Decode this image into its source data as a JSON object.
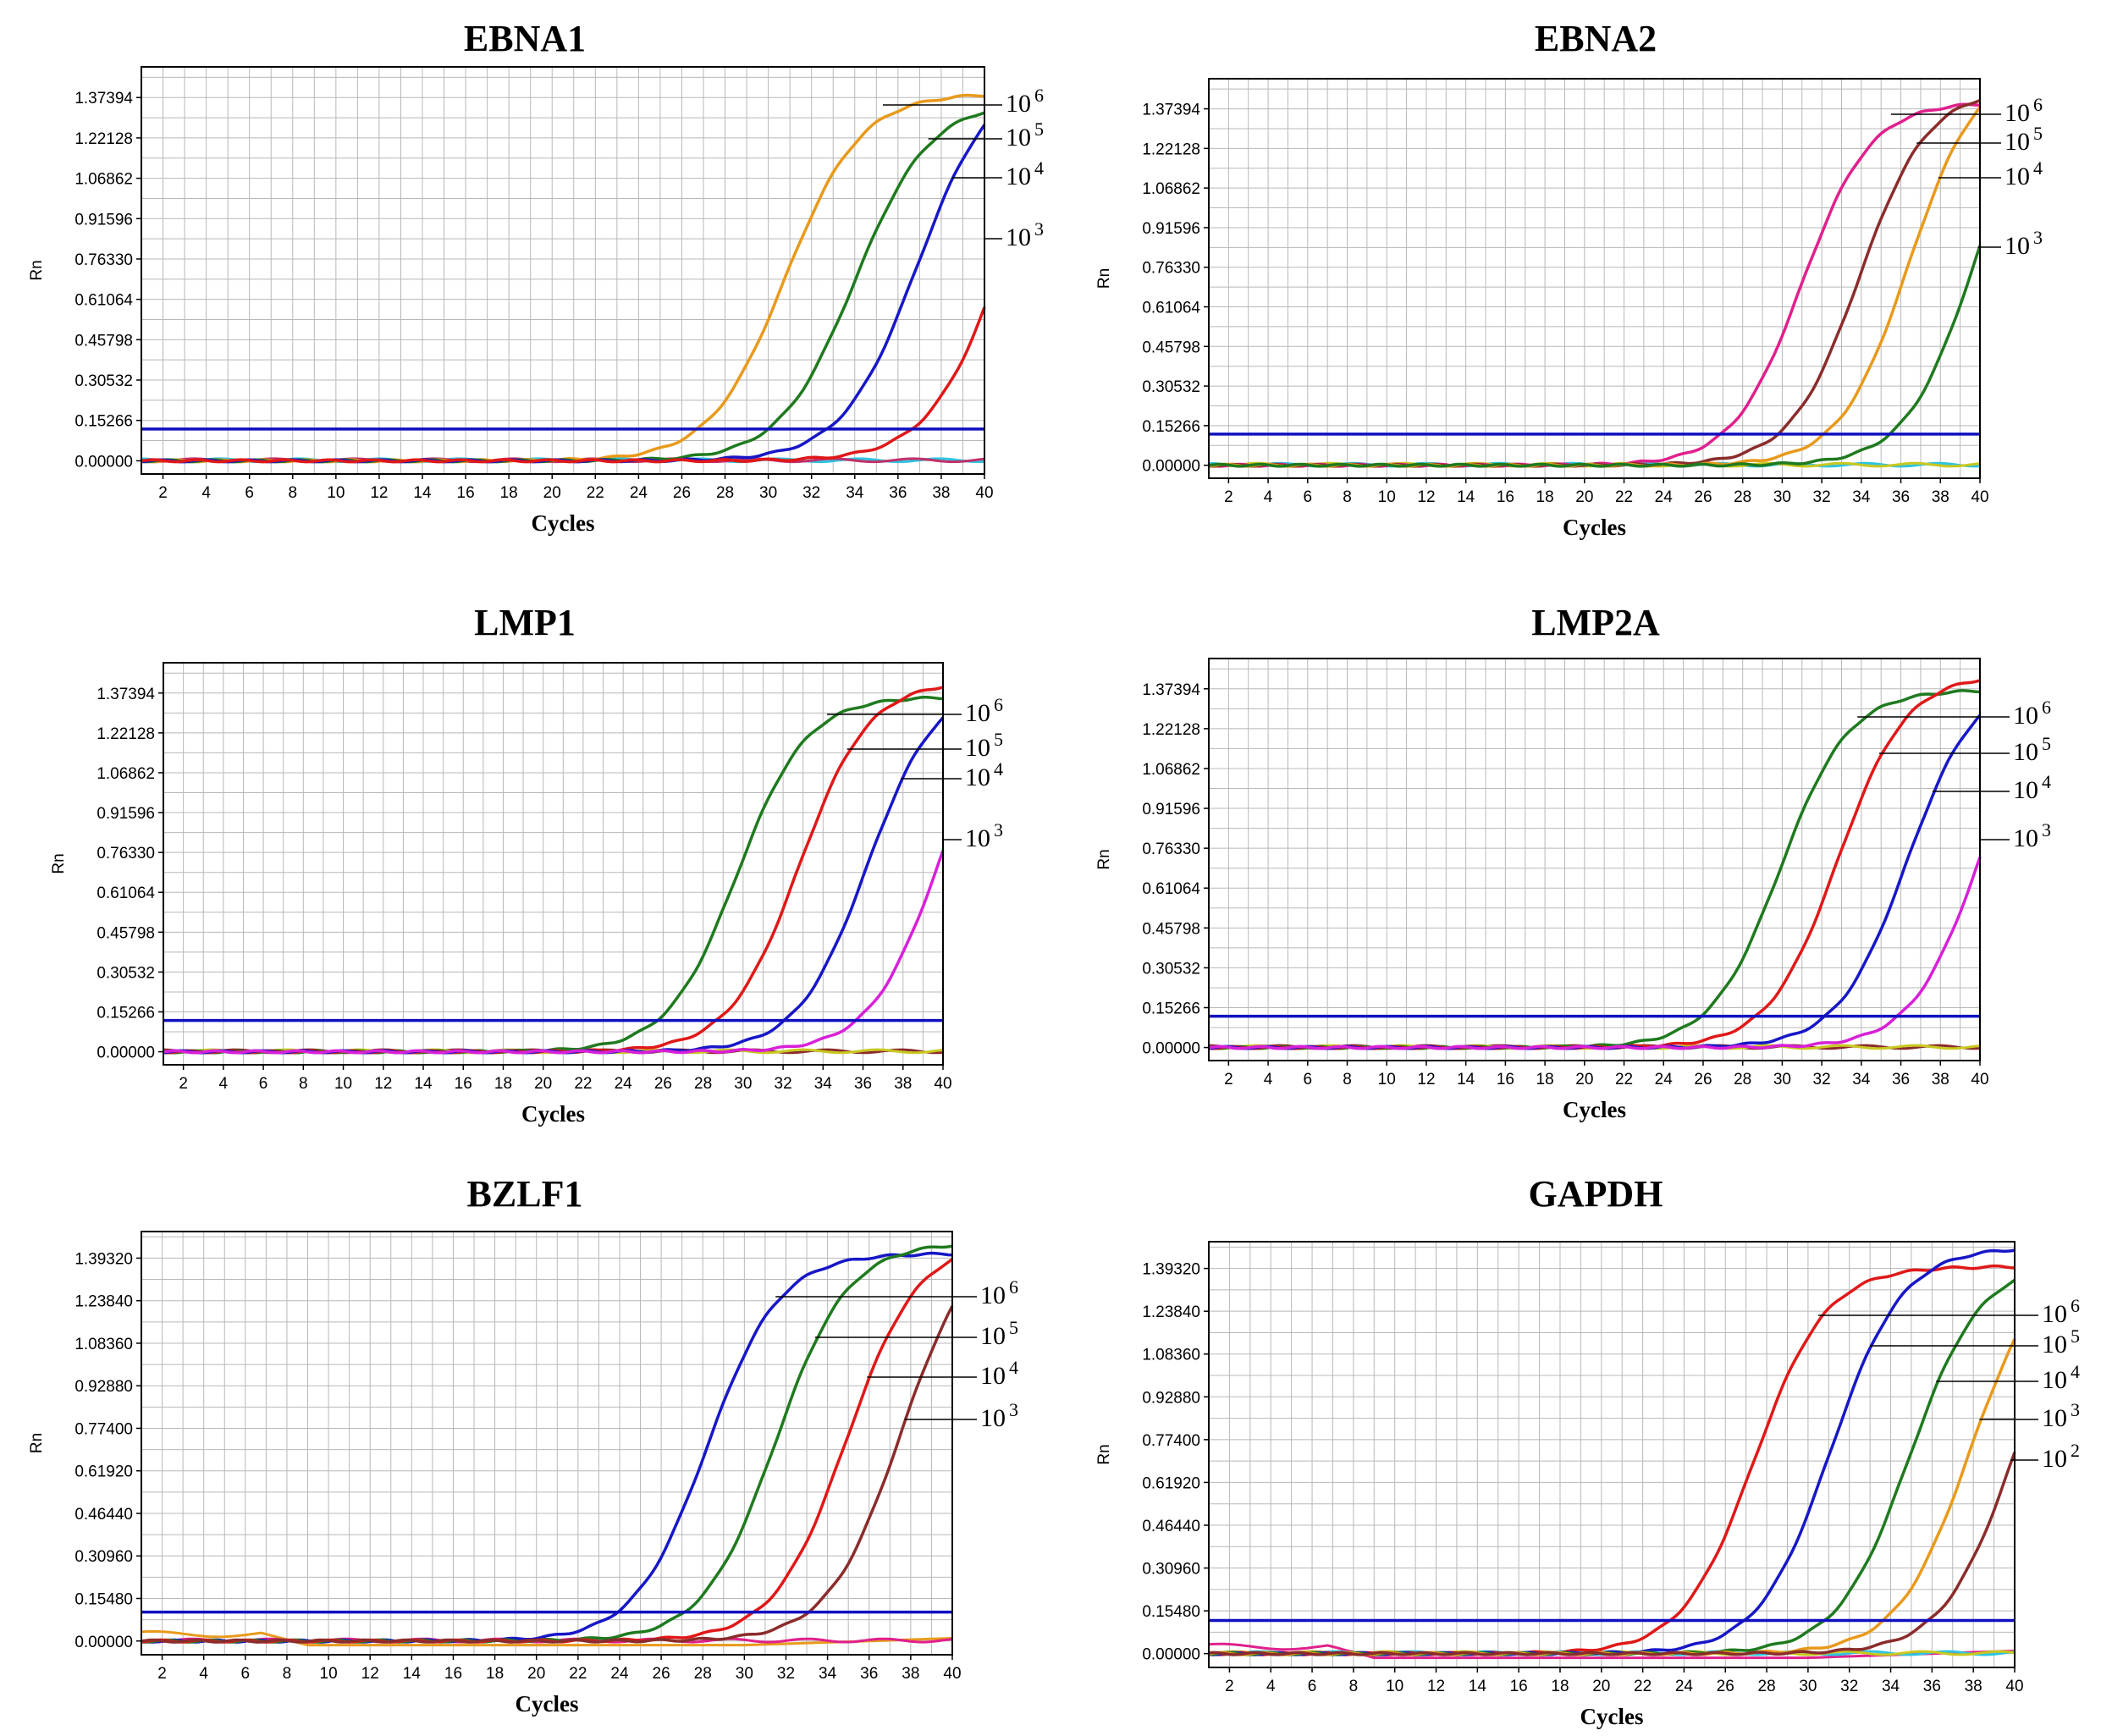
{
  "figure": {
    "x_label": "Cycles",
    "y_label": "Rn"
  },
  "chart_data": [
    {
      "type": "line",
      "title": "EBNA1",
      "xlabel": "Cycles",
      "ylabel": "Rn",
      "xlim": [
        1,
        40
      ],
      "x_ticks": [
        "2",
        "4",
        "6",
        "8",
        "10",
        "12",
        "14",
        "16",
        "18",
        "20",
        "22",
        "24",
        "26",
        "28",
        "30",
        "32",
        "34",
        "36",
        "38",
        "40"
      ],
      "y_ticks": [
        "0.00000",
        "0.15266",
        "0.30532",
        "0.45798",
        "0.61064",
        "0.76330",
        "0.91596",
        "1.06862",
        "1.22128",
        "1.37394"
      ],
      "ylim": [
        -0.05,
        1.49
      ],
      "threshold": 0.12,
      "grid": true,
      "series": [
        {
          "color": "#e89a1c",
          "ct": 27.4,
          "plateau": 1.39
        },
        {
          "color": "#1f7a1f",
          "ct": 30.6,
          "plateau": 1.36
        },
        {
          "color": "#1717c8",
          "ct": 33.5,
          "plateau": 1.48
        },
        {
          "color": "#e01818",
          "ct": 37.5,
          "plateau": 1.55
        }
      ],
      "baseline_series": [
        {
          "color": "#2ec4e0"
        },
        {
          "color": "#c0306a"
        }
      ],
      "annotations": [
        {
          "base": "10",
          "exp": "6"
        },
        {
          "base": "10",
          "exp": "5"
        },
        {
          "base": "10",
          "exp": "4"
        },
        {
          "base": "10",
          "exp": "3"
        }
      ]
    },
    {
      "type": "line",
      "title": "EBNA2",
      "xlabel": "Cycles",
      "ylabel": "Rn",
      "xlim": [
        1,
        40
      ],
      "x_ticks": [
        "2",
        "4",
        "6",
        "8",
        "10",
        "12",
        "14",
        "16",
        "18",
        "20",
        "22",
        "24",
        "26",
        "28",
        "30",
        "32",
        "34",
        "36",
        "38",
        "40"
      ],
      "y_ticks": [
        "0.00000",
        "0.15266",
        "0.30532",
        "0.45798",
        "0.61064",
        "0.76330",
        "0.91596",
        "1.06862",
        "1.22128",
        "1.37394"
      ],
      "ylim": [
        -0.05,
        1.49
      ],
      "threshold": 0.12,
      "grid": true,
      "series": [
        {
          "color": "#e0208c",
          "ct": 27.6,
          "plateau": 1.4
        },
        {
          "color": "#8b2c2c",
          "ct": 30.5,
          "plateau": 1.45
        },
        {
          "color": "#e89a1c",
          "ct": 33.0,
          "plateau": 1.55
        },
        {
          "color": "#1f7a1f",
          "ct": 36.3,
          "plateau": 1.55
        }
      ],
      "baseline_series": [
        {
          "color": "#2ec4e0"
        },
        {
          "color": "#c8c820"
        }
      ],
      "annotations": [
        {
          "base": "10",
          "exp": "6"
        },
        {
          "base": "10",
          "exp": "5"
        },
        {
          "base": "10",
          "exp": "4"
        },
        {
          "base": "10",
          "exp": "3"
        }
      ]
    },
    {
      "type": "line",
      "title": "LMP1",
      "xlabel": "Cycles",
      "ylabel": "Rn",
      "xlim": [
        1,
        40
      ],
      "x_ticks": [
        "2",
        "4",
        "6",
        "8",
        "10",
        "12",
        "14",
        "16",
        "18",
        "20",
        "22",
        "24",
        "26",
        "28",
        "30",
        "32",
        "34",
        "36",
        "38",
        "40"
      ],
      "y_ticks": [
        "0.00000",
        "0.15266",
        "0.30532",
        "0.45798",
        "0.61064",
        "0.76330",
        "0.91596",
        "1.06862",
        "1.22128",
        "1.37394"
      ],
      "ylim": [
        -0.05,
        1.49
      ],
      "threshold": 0.12,
      "grid": true,
      "series": [
        {
          "color": "#1f7a1f",
          "ct": 26.3,
          "plateau": 1.36
        },
        {
          "color": "#e01818",
          "ct": 29.4,
          "plateau": 1.42
        },
        {
          "color": "#1717c8",
          "ct": 32.8,
          "plateau": 1.42
        },
        {
          "color": "#d820d8",
          "ct": 36.4,
          "plateau": 1.45
        }
      ],
      "baseline_series": [
        {
          "color": "#8b2c2c"
        },
        {
          "color": "#c8c820"
        }
      ],
      "annotations": [
        {
          "base": "10",
          "exp": "6"
        },
        {
          "base": "10",
          "exp": "5"
        },
        {
          "base": "10",
          "exp": "4"
        },
        {
          "base": "10",
          "exp": "3"
        }
      ]
    },
    {
      "type": "line",
      "title": "LMP2A",
      "xlabel": "Cycles",
      "ylabel": "Rn",
      "xlim": [
        1,
        40
      ],
      "x_ticks": [
        "2",
        "4",
        "6",
        "8",
        "10",
        "12",
        "14",
        "16",
        "18",
        "20",
        "22",
        "24",
        "26",
        "28",
        "30",
        "32",
        "34",
        "36",
        "38",
        "40"
      ],
      "y_ticks": [
        "0.00000",
        "0.15266",
        "0.30532",
        "0.45798",
        "0.61064",
        "0.76330",
        "0.91596",
        "1.06862",
        "1.22128",
        "1.37394"
      ],
      "ylim": [
        -0.05,
        1.49
      ],
      "threshold": 0.12,
      "grid": true,
      "series": [
        {
          "color": "#1f7a1f",
          "ct": 26.5,
          "plateau": 1.37
        },
        {
          "color": "#e01818",
          "ct": 29.4,
          "plateau": 1.43
        },
        {
          "color": "#1717c8",
          "ct": 32.9,
          "plateau": 1.42
        },
        {
          "color": "#d820d8",
          "ct": 36.6,
          "plateau": 1.45
        }
      ],
      "baseline_series": [
        {
          "color": "#8b2c2c"
        },
        {
          "color": "#c8c820"
        }
      ],
      "annotations": [
        {
          "base": "10",
          "exp": "6"
        },
        {
          "base": "10",
          "exp": "5"
        },
        {
          "base": "10",
          "exp": "4"
        },
        {
          "base": "10",
          "exp": "3"
        }
      ]
    },
    {
      "type": "line",
      "title": "BZLF1",
      "xlabel": "Cycles",
      "ylabel": "Rn",
      "xlim": [
        1,
        40
      ],
      "x_ticks": [
        "2",
        "4",
        "6",
        "8",
        "10",
        "12",
        "14",
        "16",
        "18",
        "20",
        "22",
        "24",
        "26",
        "28",
        "30",
        "32",
        "34",
        "36",
        "38",
        "40"
      ],
      "y_ticks": [
        "0.00000",
        "0.15480",
        "0.30960",
        "0.46440",
        "0.61920",
        "0.77400",
        "0.92880",
        "1.08360",
        "1.23840",
        "1.39320"
      ],
      "ylim": [
        -0.05,
        1.49
      ],
      "threshold": 0.105,
      "grid": true,
      "series": [
        {
          "color": "#1717c8",
          "ct": 24.8,
          "plateau": 1.41
        },
        {
          "color": "#1f7a1f",
          "ct": 28.1,
          "plateau": 1.45
        },
        {
          "color": "#e01818",
          "ct": 31.5,
          "plateau": 1.46
        },
        {
          "color": "#8b2c2c",
          "ct": 34.1,
          "plateau": 1.5
        }
      ],
      "baseline_series": [
        {
          "color": "#e89a1c",
          "wave": true
        },
        {
          "color": "#e0208c"
        }
      ],
      "annotations": [
        {
          "base": "10",
          "exp": "6"
        },
        {
          "base": "10",
          "exp": "5"
        },
        {
          "base": "10",
          "exp": "4"
        },
        {
          "base": "10",
          "exp": "3"
        }
      ]
    },
    {
      "type": "line",
      "title": "GAPDH",
      "xlabel": "Cycles",
      "ylabel": "Rn",
      "xlim": [
        1,
        40
      ],
      "x_ticks": [
        "2",
        "4",
        "6",
        "8",
        "10",
        "12",
        "14",
        "16",
        "18",
        "20",
        "22",
        "24",
        "26",
        "28",
        "30",
        "32",
        "34",
        "36",
        "38",
        "40"
      ],
      "y_ticks": [
        "0.00000",
        "0.15480",
        "0.30960",
        "0.46440",
        "0.61920",
        "0.77400",
        "0.92880",
        "1.08360",
        "1.23840",
        "1.39320"
      ],
      "ylim": [
        -0.05,
        1.49
      ],
      "threshold": 0.12,
      "grid": true,
      "series": [
        {
          "color": "#e01818",
          "ct": 24.0,
          "plateau": 1.4
        },
        {
          "color": "#1717c8",
          "ct": 27.7,
          "plateau": 1.47
        },
        {
          "color": "#1f7a1f",
          "ct": 31.5,
          "plateau": 1.42
        },
        {
          "color": "#e89a1c",
          "ct": 34.4,
          "plateau": 1.45
        },
        {
          "color": "#8b2c2c",
          "ct": 36.6,
          "plateau": 1.45
        }
      ],
      "baseline_series": [
        {
          "color": "#e0208c",
          "wave": true
        },
        {
          "color": "#2ec4e0"
        },
        {
          "color": "#c8c820"
        }
      ],
      "annotations": [
        {
          "base": "10",
          "exp": "6"
        },
        {
          "base": "10",
          "exp": "5"
        },
        {
          "base": "10",
          "exp": "4"
        },
        {
          "base": "10",
          "exp": "3"
        },
        {
          "base": "10",
          "exp": "2"
        }
      ]
    }
  ]
}
